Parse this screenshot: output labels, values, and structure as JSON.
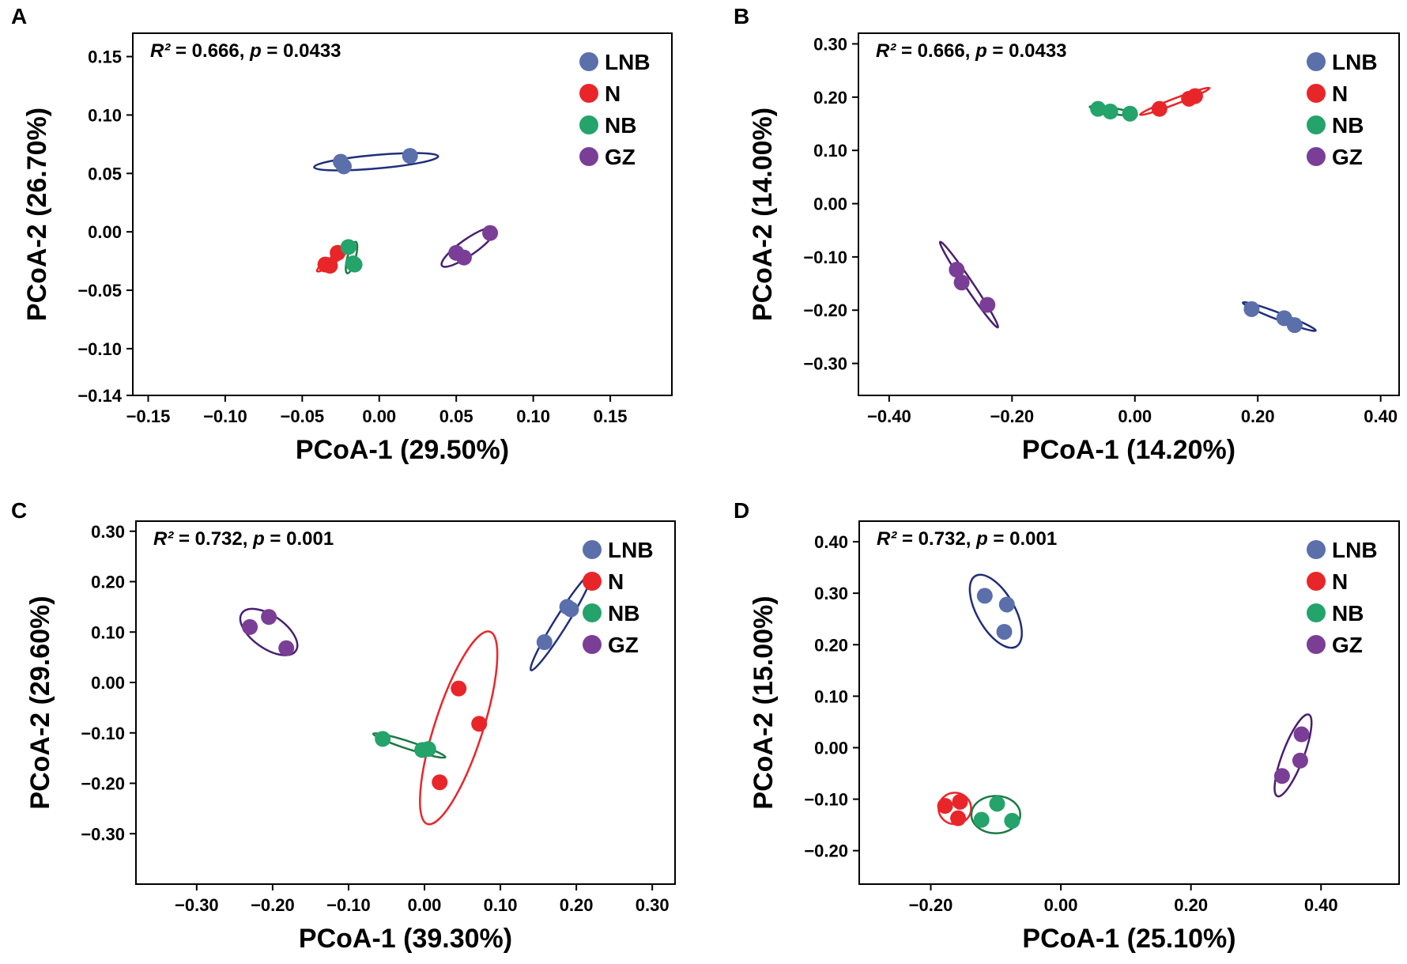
{
  "colors": {
    "LNB": "#5b6fab",
    "N": "#e8262a",
    "NB": "#24a36a",
    "GZ": "#7a3e97",
    "LNB_ellipse": "#1f2f7a",
    "N_ellipse": "#e8262a",
    "NB_ellipse": "#1c7a43",
    "GZ_ellipse": "#4a1f6e"
  },
  "chart_data": [
    {
      "type": "scatter",
      "panel": "A",
      "annotation": {
        "r2_label": "R²",
        "r2": "= 0.666,",
        "p_label": "p",
        "p": "= 0.0433"
      },
      "xlabel": "PCoA-1 (29.50%)",
      "ylabel": "PCoA-2 (26.70%)",
      "xlim": [
        -0.16,
        0.19
      ],
      "ylim": [
        -0.14,
        0.17
      ],
      "xticks": [
        -0.15,
        -0.1,
        -0.05,
        0.0,
        0.05,
        0.1,
        0.15
      ],
      "xtick_labels": [
        "−0.15",
        "−0.10",
        "−0.05",
        "0.00",
        "0.05",
        "0.10",
        "0.15"
      ],
      "yticks": [
        -0.14,
        -0.1,
        -0.05,
        0.0,
        0.05,
        0.1,
        0.15
      ],
      "ytick_labels": [
        "−0.14",
        "−0.10",
        "−0.05",
        "0.00",
        "0.05",
        "0.10",
        "0.15"
      ],
      "legend": [
        "LNB",
        "N",
        "NB",
        "GZ"
      ],
      "series": [
        {
          "name": "LNB",
          "points": [
            [
              -0.025,
              0.06
            ],
            [
              -0.023,
              0.056
            ],
            [
              0.02,
              0.065
            ]
          ],
          "ellipse": {
            "cx": -0.002,
            "cy": 0.06,
            "rx": 0.046,
            "ry": 0.005,
            "angle": 5
          }
        },
        {
          "name": "N",
          "points": [
            [
              -0.035,
              -0.028
            ],
            [
              -0.032,
              -0.029
            ],
            [
              -0.027,
              -0.018
            ]
          ],
          "ellipse": {
            "cx": -0.031,
            "cy": -0.025,
            "rx": 0.013,
            "ry": 0.0025,
            "angle": 35
          }
        },
        {
          "name": "NB",
          "points": [
            [
              -0.02,
              -0.013
            ],
            [
              -0.017,
              -0.027
            ],
            [
              -0.016,
              -0.028
            ]
          ],
          "ellipse": {
            "cx": -0.018,
            "cy": -0.022,
            "rx": 0.012,
            "ry": 0.003,
            "angle": 75
          }
        },
        {
          "name": "GZ",
          "points": [
            [
              0.05,
              -0.018
            ],
            [
              0.055,
              -0.022
            ],
            [
              0.072,
              -0.001
            ]
          ],
          "ellipse": {
            "cx": 0.058,
            "cy": -0.013,
            "rx": 0.024,
            "ry": 0.006,
            "angle": 35
          }
        }
      ]
    },
    {
      "type": "scatter",
      "panel": "B",
      "annotation": {
        "r2_label": "R²",
        "r2": "= 0.666,",
        "p_label": "p",
        "p": "= 0.0433"
      },
      "xlabel": "PCoA-1 (14.20%)",
      "ylabel": "PCoA-2 (14.00%)",
      "xlim": [
        -0.45,
        0.43
      ],
      "ylim": [
        -0.36,
        0.32
      ],
      "xticks": [
        -0.4,
        -0.2,
        0.0,
        0.2,
        0.4
      ],
      "xtick_labels": [
        "−0.40",
        "−0.20",
        "0.00",
        "0.20",
        "0.40"
      ],
      "yticks": [
        -0.3,
        -0.2,
        -0.1,
        0.0,
        0.1,
        0.2,
        0.3
      ],
      "ytick_labels": [
        "−0.30",
        "−0.20",
        "−0.10",
        "0.00",
        "0.10",
        "0.20",
        "0.30"
      ],
      "legend": [
        "LNB",
        "N",
        "NB",
        "GZ"
      ],
      "series": [
        {
          "name": "LNB",
          "points": [
            [
              0.19,
              -0.198
            ],
            [
              0.243,
              -0.215
            ],
            [
              0.26,
              -0.228
            ]
          ],
          "ellipse": {
            "cx": 0.235,
            "cy": -0.212,
            "rx": 0.068,
            "ry": 0.006,
            "angle": -21
          }
        },
        {
          "name": "N",
          "points": [
            [
              0.04,
              0.178
            ],
            [
              0.088,
              0.197
            ],
            [
              0.098,
              0.202
            ]
          ],
          "ellipse": {
            "cx": 0.065,
            "cy": 0.192,
            "rx": 0.065,
            "ry": 0.005,
            "angle": 21
          }
        },
        {
          "name": "NB",
          "points": [
            [
              -0.06,
              0.178
            ],
            [
              -0.04,
              0.173
            ],
            [
              -0.008,
              0.169
            ]
          ],
          "ellipse": {
            "cx": -0.035,
            "cy": 0.174,
            "rx": 0.042,
            "ry": 0.005,
            "angle": -10
          }
        },
        {
          "name": "GZ",
          "points": [
            [
              -0.29,
              -0.124
            ],
            [
              -0.282,
              -0.148
            ],
            [
              -0.24,
              -0.19
            ]
          ],
          "ellipse": {
            "cx": -0.27,
            "cy": -0.152,
            "rx": 0.09,
            "ry": 0.007,
            "angle": -56
          }
        }
      ]
    },
    {
      "type": "scatter",
      "panel": "C",
      "annotation": {
        "r2_label": "R²",
        "r2": "= 0.732,",
        "p_label": "p",
        "p": "= 0.001"
      },
      "xlabel": "PCoA-1 (39.30%)",
      "ylabel": "PCoA-2 (29.60%)",
      "xlim": [
        -0.38,
        0.33
      ],
      "ylim": [
        -0.4,
        0.32
      ],
      "xticks": [
        -0.3,
        -0.2,
        -0.1,
        0.0,
        0.1,
        0.2,
        0.3
      ],
      "xtick_labels": [
        "−0.30",
        "−0.20",
        "−0.10",
        "0.00",
        "0.10",
        "0.20",
        "0.30"
      ],
      "yticks": [
        -0.3,
        -0.2,
        -0.1,
        0.0,
        0.1,
        0.2,
        0.3
      ],
      "ytick_labels": [
        "−0.30",
        "−0.20",
        "−0.10",
        "0.00",
        "0.10",
        "0.20",
        "0.30"
      ],
      "legend": [
        "LNB",
        "N",
        "NB",
        "GZ"
      ],
      "series": [
        {
          "name": "LNB",
          "points": [
            [
              0.158,
              0.08
            ],
            [
              0.188,
              0.15
            ],
            [
              0.193,
              0.145
            ]
          ],
          "ellipse": {
            "cx": 0.18,
            "cy": 0.12,
            "rx": 0.09,
            "ry": 0.01,
            "angle": 58
          }
        },
        {
          "name": "N",
          "points": [
            [
              0.045,
              -0.012
            ],
            [
              0.072,
              -0.082
            ],
            [
              0.02,
              -0.198
            ]
          ],
          "ellipse": {
            "cx": 0.045,
            "cy": -0.09,
            "rx": 0.16,
            "ry": 0.038,
            "angle": 72
          }
        },
        {
          "name": "NB",
          "points": [
            [
              -0.055,
              -0.112
            ],
            [
              -0.003,
              -0.134
            ],
            [
              0.005,
              -0.132
            ]
          ],
          "ellipse": {
            "cx": -0.02,
            "cy": -0.125,
            "rx": 0.06,
            "ry": 0.006,
            "angle": -18
          }
        },
        {
          "name": "GZ",
          "points": [
            [
              -0.23,
              0.11
            ],
            [
              -0.205,
              0.13
            ],
            [
              -0.182,
              0.068
            ]
          ],
          "ellipse": {
            "cx": -0.205,
            "cy": 0.1,
            "rx": 0.052,
            "ry": 0.026,
            "angle": -35
          }
        }
      ]
    },
    {
      "type": "scatter",
      "panel": "D",
      "annotation": {
        "r2_label": "R²",
        "r2": "= 0.732,",
        "p_label": "p",
        "p": "= 0.001"
      },
      "xlabel": "PCoA-1 (25.10%)",
      "ylabel": "PCoA-2 (15.00%)",
      "xlim": [
        -0.31,
        0.52
      ],
      "ylim": [
        -0.265,
        0.44
      ],
      "xticks": [
        -0.2,
        0.0,
        0.2,
        0.4
      ],
      "xtick_labels": [
        "−0.20",
        "0.00",
        "0.20",
        "0.40"
      ],
      "yticks": [
        -0.2,
        -0.1,
        0.0,
        0.1,
        0.2,
        0.3,
        0.4
      ],
      "ytick_labels": [
        "−0.20",
        "−0.10",
        "0.00",
        "0.10",
        "0.20",
        "0.30",
        "0.40"
      ],
      "legend": [
        "LNB",
        "N",
        "NB",
        "GZ"
      ],
      "series": [
        {
          "name": "LNB",
          "points": [
            [
              -0.117,
              0.295
            ],
            [
              -0.083,
              0.278
            ],
            [
              -0.087,
              0.225
            ]
          ],
          "ellipse": {
            "cx": -0.1,
            "cy": 0.265,
            "rx": 0.07,
            "ry": 0.032,
            "angle": -60
          }
        },
        {
          "name": "N",
          "points": [
            [
              -0.178,
              -0.113
            ],
            [
              -0.155,
              -0.105
            ],
            [
              -0.158,
              -0.137
            ]
          ],
          "ellipse": {
            "cx": -0.163,
            "cy": -0.118,
            "rx": 0.028,
            "ry": 0.027,
            "angle": 0
          }
        },
        {
          "name": "NB",
          "points": [
            [
              -0.122,
              -0.14
            ],
            [
              -0.098,
              -0.109
            ],
            [
              -0.075,
              -0.142
            ]
          ],
          "ellipse": {
            "cx": -0.1,
            "cy": -0.13,
            "rx": 0.042,
            "ry": 0.032,
            "angle": 0
          }
        },
        {
          "name": "GZ",
          "points": [
            [
              0.34,
              -0.055
            ],
            [
              0.37,
              0.026
            ],
            [
              0.368,
              -0.025
            ]
          ],
          "ellipse": {
            "cx": 0.357,
            "cy": -0.015,
            "rx": 0.075,
            "ry": 0.018,
            "angle": 69
          }
        }
      ]
    }
  ]
}
